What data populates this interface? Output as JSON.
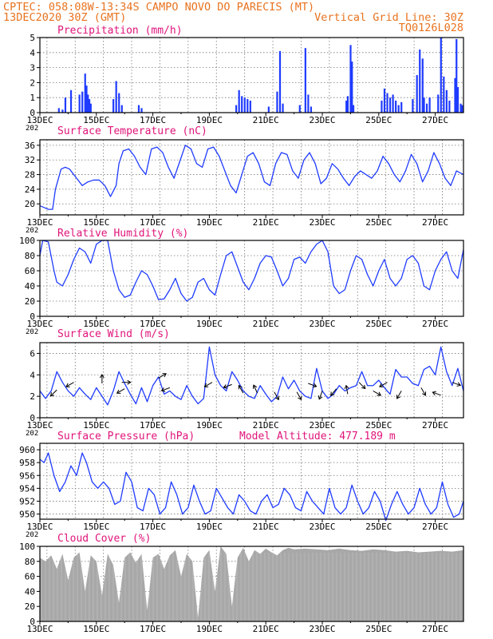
{
  "header": {
    "line1": "CPTEC:   058:08W-13:34S  CAMPO NOVO DO PARECIS (MT)",
    "line2_left": "13DEC2020 30Z (GMT)",
    "line2_right": "Vertical Grid Line: 30Z",
    "line3_right": "TQ0126L028"
  },
  "colors": {
    "accent_title": "#e0147a",
    "header": "#e8731f",
    "series": "#1f3bff",
    "cloud": "#a8a8a8",
    "wind_arrow": "#000000"
  },
  "chart_data": [
    {
      "id": "precip",
      "type": "bar",
      "title": "Precipitation (mm/h)",
      "ylim": [
        0,
        5
      ],
      "yticks": [
        0,
        1,
        2,
        3,
        4,
        5
      ],
      "xlim_days": [
        0,
        15
      ],
      "xtick_labels": [
        "13DEC",
        "15DEC",
        "17DEC",
        "19DEC",
        "21DEC",
        "23DEC",
        "25DEC",
        "27DEC"
      ],
      "xtick_cut": "202",
      "bars": [
        [
          0.67,
          0.3
        ],
        [
          0.8,
          0.2
        ],
        [
          0.9,
          1.0
        ],
        [
          1.1,
          1.5
        ],
        [
          1.4,
          1.2
        ],
        [
          1.5,
          1.4
        ],
        [
          1.6,
          2.6
        ],
        [
          1.65,
          1.8
        ],
        [
          1.7,
          1.2
        ],
        [
          1.75,
          0.9
        ],
        [
          1.8,
          0.6
        ],
        [
          2.6,
          0.9
        ],
        [
          2.7,
          2.1
        ],
        [
          2.8,
          1.3
        ],
        [
          2.9,
          0.5
        ],
        [
          3.5,
          0.5
        ],
        [
          3.6,
          0.3
        ],
        [
          6.95,
          0.5
        ],
        [
          7.05,
          1.5
        ],
        [
          7.15,
          1.1
        ],
        [
          7.25,
          1.0
        ],
        [
          7.35,
          0.9
        ],
        [
          7.45,
          0.8
        ],
        [
          8.1,
          0.4
        ],
        [
          8.4,
          1.4
        ],
        [
          8.5,
          4.1
        ],
        [
          8.6,
          0.6
        ],
        [
          9.2,
          0.5
        ],
        [
          9.4,
          4.3
        ],
        [
          9.5,
          1.2
        ],
        [
          9.6,
          0.4
        ],
        [
          10.85,
          0.8
        ],
        [
          10.9,
          1.1
        ],
        [
          11.0,
          4.5
        ],
        [
          11.05,
          3.4
        ],
        [
          11.1,
          0.5
        ],
        [
          12.1,
          0.8
        ],
        [
          12.2,
          1.6
        ],
        [
          12.3,
          1.3
        ],
        [
          12.4,
          1.0
        ],
        [
          12.5,
          1.2
        ],
        [
          12.6,
          0.8
        ],
        [
          12.7,
          0.5
        ],
        [
          12.8,
          0.7
        ],
        [
          13.2,
          0.9
        ],
        [
          13.35,
          2.5
        ],
        [
          13.45,
          4.2
        ],
        [
          13.55,
          3.6
        ],
        [
          13.6,
          1.0
        ],
        [
          13.7,
          0.6
        ],
        [
          13.8,
          1.0
        ],
        [
          14.1,
          1.2
        ],
        [
          14.2,
          5.0
        ],
        [
          14.3,
          2.4
        ],
        [
          14.4,
          1.5
        ],
        [
          14.5,
          0.8
        ],
        [
          14.7,
          2.3
        ],
        [
          14.75,
          4.9
        ],
        [
          14.8,
          1.7
        ],
        [
          14.9,
          0.6
        ],
        [
          14.95,
          0.5
        ]
      ]
    },
    {
      "id": "temp",
      "type": "line",
      "title": "Surface Temperature (nC)",
      "ylim": [
        17,
        37.5
      ],
      "yticks": [
        20,
        24,
        28,
        32,
        36
      ],
      "xlim_days": [
        0,
        15
      ],
      "xtick_labels": [
        "13DEC",
        "15DEC",
        "17DEC",
        "19DEC",
        "21DEC",
        "23DEC",
        "25DEC",
        "27DEC"
      ],
      "xtick_cut": "202",
      "x": [
        0,
        0.15,
        0.3,
        0.45,
        0.55,
        0.75,
        0.9,
        1.05,
        1.3,
        1.5,
        1.7,
        1.9,
        2.1,
        2.3,
        2.5,
        2.7,
        2.8,
        2.95,
        3.15,
        3.35,
        3.55,
        3.75,
        3.95,
        4.15,
        4.35,
        4.55,
        4.75,
        4.95,
        5.15,
        5.35,
        5.55,
        5.75,
        5.95,
        6.15,
        6.35,
        6.55,
        6.75,
        6.95,
        7.15,
        7.35,
        7.55,
        7.75,
        7.95,
        8.15,
        8.35,
        8.55,
        8.75,
        8.95,
        9.15,
        9.35,
        9.55,
        9.75,
        9.95,
        10.15,
        10.35,
        10.55,
        10.75,
        10.95,
        11.15,
        11.35,
        11.55,
        11.75,
        11.95,
        12.15,
        12.35,
        12.55,
        12.75,
        12.95,
        13.15,
        13.35,
        13.55,
        13.75,
        13.95,
        14.15,
        14.35,
        14.55,
        14.75,
        15.0
      ],
      "y": [
        19.5,
        19,
        18.5,
        18.5,
        24,
        29.5,
        30,
        29.5,
        27,
        25,
        26,
        26.5,
        26.5,
        25,
        22,
        25,
        31,
        34.5,
        35,
        33,
        30,
        28,
        35,
        35.5,
        34,
        30,
        27,
        31.5,
        36,
        35,
        31,
        30,
        35,
        35.5,
        33,
        29,
        25,
        23,
        28,
        33,
        34,
        31,
        26,
        25,
        31,
        34,
        33.5,
        29,
        27,
        32,
        34,
        31,
        25.5,
        27,
        31,
        29.5,
        27,
        25,
        27.5,
        29,
        28,
        27,
        29,
        33,
        31,
        28,
        26,
        29,
        33.5,
        31,
        26,
        29,
        34,
        31,
        27,
        25,
        29,
        28
      ]
    },
    {
      "id": "rh",
      "type": "line",
      "title": "Relative Humidity (%)",
      "ylim": [
        0,
        100
      ],
      "yticks": [
        0,
        20,
        40,
        60,
        80,
        100
      ],
      "xlim_days": [
        0,
        15
      ],
      "xtick_labels": [
        "13DEC",
        "15DEC",
        "17DEC",
        "19DEC",
        "21DEC",
        "23DEC",
        "25DEC",
        "27DEC"
      ],
      "xtick_cut": "202",
      "x": [
        0,
        0.1,
        0.3,
        0.5,
        0.6,
        0.8,
        1.0,
        1.2,
        1.4,
        1.6,
        1.8,
        2.0,
        2.2,
        2.4,
        2.6,
        2.8,
        3.0,
        3.2,
        3.4,
        3.6,
        3.8,
        4.0,
        4.2,
        4.4,
        4.6,
        4.8,
        5.0,
        5.2,
        5.4,
        5.6,
        5.8,
        6.0,
        6.2,
        6.4,
        6.6,
        6.8,
        7.0,
        7.2,
        7.4,
        7.6,
        7.8,
        8.0,
        8.2,
        8.4,
        8.6,
        8.8,
        9.0,
        9.2,
        9.4,
        9.6,
        9.8,
        10.0,
        10.2,
        10.4,
        10.6,
        10.8,
        11.0,
        11.2,
        11.4,
        11.6,
        11.8,
        12.0,
        12.2,
        12.4,
        12.6,
        12.8,
        13.0,
        13.2,
        13.4,
        13.6,
        13.8,
        14.0,
        14.2,
        14.4,
        14.6,
        14.8,
        15.0
      ],
      "y": [
        80,
        100,
        98,
        60,
        45,
        40,
        55,
        75,
        90,
        85,
        70,
        95,
        100,
        100,
        60,
        35,
        25,
        28,
        45,
        60,
        55,
        40,
        22,
        23,
        35,
        50,
        30,
        20,
        25,
        45,
        50,
        35,
        28,
        55,
        80,
        85,
        65,
        45,
        35,
        50,
        70,
        80,
        78,
        60,
        40,
        50,
        75,
        78,
        70,
        85,
        95,
        100,
        85,
        40,
        30,
        35,
        60,
        80,
        75,
        55,
        40,
        60,
        75,
        50,
        40,
        50,
        75,
        80,
        70,
        40,
        35,
        60,
        75,
        85,
        60,
        50,
        88
      ]
    },
    {
      "id": "wind",
      "type": "line",
      "title": "Surface Wind (m/s)",
      "ylim": [
        0,
        7
      ],
      "yticks": [
        0,
        2,
        4,
        6
      ],
      "xlim_days": [
        0,
        15
      ],
      "xtick_labels": [
        "13DEC",
        "15DEC",
        "17DEC",
        "19DEC",
        "21DEC",
        "23DEC",
        "25DEC",
        "27DEC"
      ],
      "xtick_cut": "202",
      "x": [
        0,
        0.2,
        0.4,
        0.6,
        0.8,
        1.0,
        1.2,
        1.4,
        1.6,
        1.8,
        2.0,
        2.2,
        2.4,
        2.6,
        2.8,
        3.0,
        3.2,
        3.4,
        3.6,
        3.8,
        4.0,
        4.2,
        4.4,
        4.6,
        4.8,
        5.0,
        5.2,
        5.4,
        5.6,
        5.8,
        6.0,
        6.2,
        6.4,
        6.6,
        6.8,
        7.0,
        7.2,
        7.4,
        7.6,
        7.8,
        8.0,
        8.2,
        8.4,
        8.6,
        8.8,
        9.0,
        9.2,
        9.4,
        9.6,
        9.8,
        10.0,
        10.2,
        10.4,
        10.6,
        10.8,
        11.0,
        11.2,
        11.4,
        11.6,
        11.8,
        12.0,
        12.2,
        12.4,
        12.6,
        12.8,
        13.0,
        13.2,
        13.4,
        13.6,
        13.8,
        14.0,
        14.2,
        14.4,
        14.6,
        14.8,
        15.0
      ],
      "y": [
        2.5,
        1.8,
        2.5,
        4.3,
        3.3,
        2.5,
        2.0,
        2.8,
        2.2,
        1.7,
        2.8,
        2.0,
        1.2,
        2.5,
        4.3,
        3.2,
        2.2,
        1.3,
        2.8,
        1.5,
        3.0,
        3.8,
        2.2,
        2.5,
        2.0,
        1.7,
        3.0,
        2.0,
        1.3,
        1.8,
        6.6,
        4.0,
        3.0,
        2.5,
        4.3,
        3.5,
        2.5,
        2.0,
        1.8,
        3.0,
        2.2,
        1.5,
        2.0,
        3.8,
        2.7,
        3.5,
        2.5,
        2.0,
        1.8,
        4.6,
        2.5,
        1.8,
        2.2,
        3.0,
        2.5,
        2.8,
        3.0,
        4.3,
        3.0,
        3.0,
        3.5,
        2.8,
        2.2,
        4.5,
        3.8,
        3.8,
        3.2,
        3.0,
        4.5,
        4.8,
        4.0,
        6.6,
        4.3,
        3.0,
        4.6,
        2.5
      ],
      "arrows": [
        {
          "x": 0.6,
          "y": 2.6,
          "dir": -135
        },
        {
          "x": 1.2,
          "y": 3.3,
          "dir": -150
        },
        {
          "x": 2.2,
          "y": 3.2,
          "dir": 90
        },
        {
          "x": 2.9,
          "y": 3.3,
          "dir": 0
        },
        {
          "x": 3.0,
          "y": 2.7,
          "dir": -150
        },
        {
          "x": 4.2,
          "y": 3.7,
          "dir": 30
        },
        {
          "x": 4.6,
          "y": 2.8,
          "dir": -160
        },
        {
          "x": 6.1,
          "y": 3.3,
          "dir": -150
        },
        {
          "x": 6.8,
          "y": 3.1,
          "dir": -160
        },
        {
          "x": 7.2,
          "y": 2.3,
          "dir": 120
        },
        {
          "x": 7.7,
          "y": 2.3,
          "dir": 115
        },
        {
          "x": 8.3,
          "y": 2.4,
          "dir": -60
        },
        {
          "x": 9.1,
          "y": 2.4,
          "dir": -60
        },
        {
          "x": 9.5,
          "y": 3.2,
          "dir": -20
        },
        {
          "x": 10.0,
          "y": 2.5,
          "dir": -110
        },
        {
          "x": 10.5,
          "y": 2.7,
          "dir": -130
        },
        {
          "x": 10.9,
          "y": 2.2,
          "dir": 100
        },
        {
          "x": 11.3,
          "y": 3.3,
          "dir": -45
        },
        {
          "x": 11.8,
          "y": 2.5,
          "dir": -30
        },
        {
          "x": 12.3,
          "y": 3.3,
          "dir": -150
        },
        {
          "x": 12.8,
          "y": 2.5,
          "dir": -120
        },
        {
          "x": 13.5,
          "y": 2.8,
          "dir": -60
        },
        {
          "x": 14.2,
          "y": 2.1,
          "dir": 160
        },
        {
          "x": 14.6,
          "y": 3.3,
          "dir": -20
        }
      ]
    },
    {
      "id": "pres",
      "type": "line",
      "title": "Surface Pressure (hPa)",
      "subtitle": "Model Altitude: 477.189 m",
      "ylim": [
        949.2,
        961
      ],
      "yticks": [
        950,
        952,
        954,
        956,
        958,
        960
      ],
      "xlim_days": [
        0,
        15
      ],
      "xtick_labels": [
        "13DEC",
        "15DEC",
        "17DEC",
        "19DEC",
        "21DEC",
        "23DEC",
        "25DEC",
        "27DEC"
      ],
      "xtick_cut": "202",
      "x": [
        0,
        0.15,
        0.3,
        0.5,
        0.7,
        0.9,
        1.1,
        1.3,
        1.5,
        1.65,
        1.85,
        2.05,
        2.25,
        2.45,
        2.65,
        2.85,
        3.05,
        3.25,
        3.45,
        3.65,
        3.85,
        4.05,
        4.25,
        4.45,
        4.65,
        4.85,
        5.05,
        5.25,
        5.45,
        5.65,
        5.85,
        6.05,
        6.25,
        6.45,
        6.65,
        6.85,
        7.05,
        7.25,
        7.45,
        7.65,
        7.85,
        8.05,
        8.25,
        8.45,
        8.65,
        8.85,
        9.05,
        9.25,
        9.45,
        9.65,
        9.85,
        10.05,
        10.25,
        10.45,
        10.65,
        10.85,
        11.05,
        11.25,
        11.45,
        11.65,
        11.85,
        12.05,
        12.25,
        12.45,
        12.65,
        12.85,
        13.05,
        13.25,
        13.45,
        13.65,
        13.85,
        14.05,
        14.25,
        14.45,
        14.65,
        14.85,
        15.0
      ],
      "y": [
        958.5,
        958,
        959.5,
        956,
        953.5,
        955,
        957.5,
        956,
        959.5,
        958,
        955,
        954,
        955,
        954,
        951.5,
        952,
        956.5,
        955,
        951,
        950.5,
        954,
        953,
        950,
        951,
        955,
        953,
        950,
        951,
        954.5,
        952,
        950,
        950.5,
        954,
        952.5,
        951,
        950,
        953,
        952,
        950.5,
        950,
        952,
        953,
        951,
        951.5,
        954,
        953,
        951,
        950.5,
        953.5,
        952,
        951,
        950,
        954,
        951,
        950,
        951,
        954.5,
        952,
        950,
        951,
        953.5,
        952,
        949,
        951.5,
        953.5,
        951.5,
        950,
        951,
        954,
        951.5,
        950,
        951,
        955,
        951.5,
        949.5,
        950,
        952
      ]
    },
    {
      "id": "cloud",
      "type": "area",
      "title": "Cloud Cover (%)",
      "ylim": [
        0,
        100
      ],
      "yticks": [
        0,
        20,
        40,
        60,
        80,
        100
      ],
      "xlim_days": [
        0,
        15
      ],
      "xtick_labels": [
        "13DEC",
        "15DEC",
        "17DEC",
        "19DEC",
        "21DEC",
        "23DEC",
        "25DEC",
        "27DEC"
      ],
      "xtick_cut": "202",
      "x": [
        0,
        0.2,
        0.4,
        0.6,
        0.8,
        1.0,
        1.2,
        1.4,
        1.6,
        1.8,
        2.0,
        2.2,
        2.4,
        2.6,
        2.8,
        3.0,
        3.2,
        3.4,
        3.6,
        3.8,
        4.0,
        4.2,
        4.4,
        4.6,
        4.8,
        5.0,
        5.2,
        5.4,
        5.6,
        5.8,
        6.0,
        6.2,
        6.4,
        6.6,
        6.8,
        7.0,
        7.2,
        7.4,
        7.6,
        7.8,
        8.0,
        8.2,
        8.4,
        8.6,
        8.8,
        9.0,
        9.4,
        9.8,
        10.2,
        10.6,
        11.0,
        11.4,
        11.8,
        12.2,
        12.6,
        13.0,
        13.4,
        13.8,
        14.2,
        14.6,
        15.0
      ],
      "y": [
        85,
        80,
        88,
        70,
        90,
        55,
        85,
        92,
        40,
        88,
        80,
        35,
        90,
        75,
        25,
        85,
        92,
        78,
        90,
        15,
        85,
        90,
        70,
        88,
        95,
        60,
        90,
        80,
        5,
        85,
        95,
        40,
        100,
        90,
        20,
        85,
        98,
        80,
        95,
        90,
        97,
        92,
        88,
        95,
        98,
        96,
        97,
        96,
        95,
        97,
        95,
        94,
        96,
        95,
        93,
        94,
        92,
        93,
        94,
        93,
        95
      ]
    }
  ]
}
